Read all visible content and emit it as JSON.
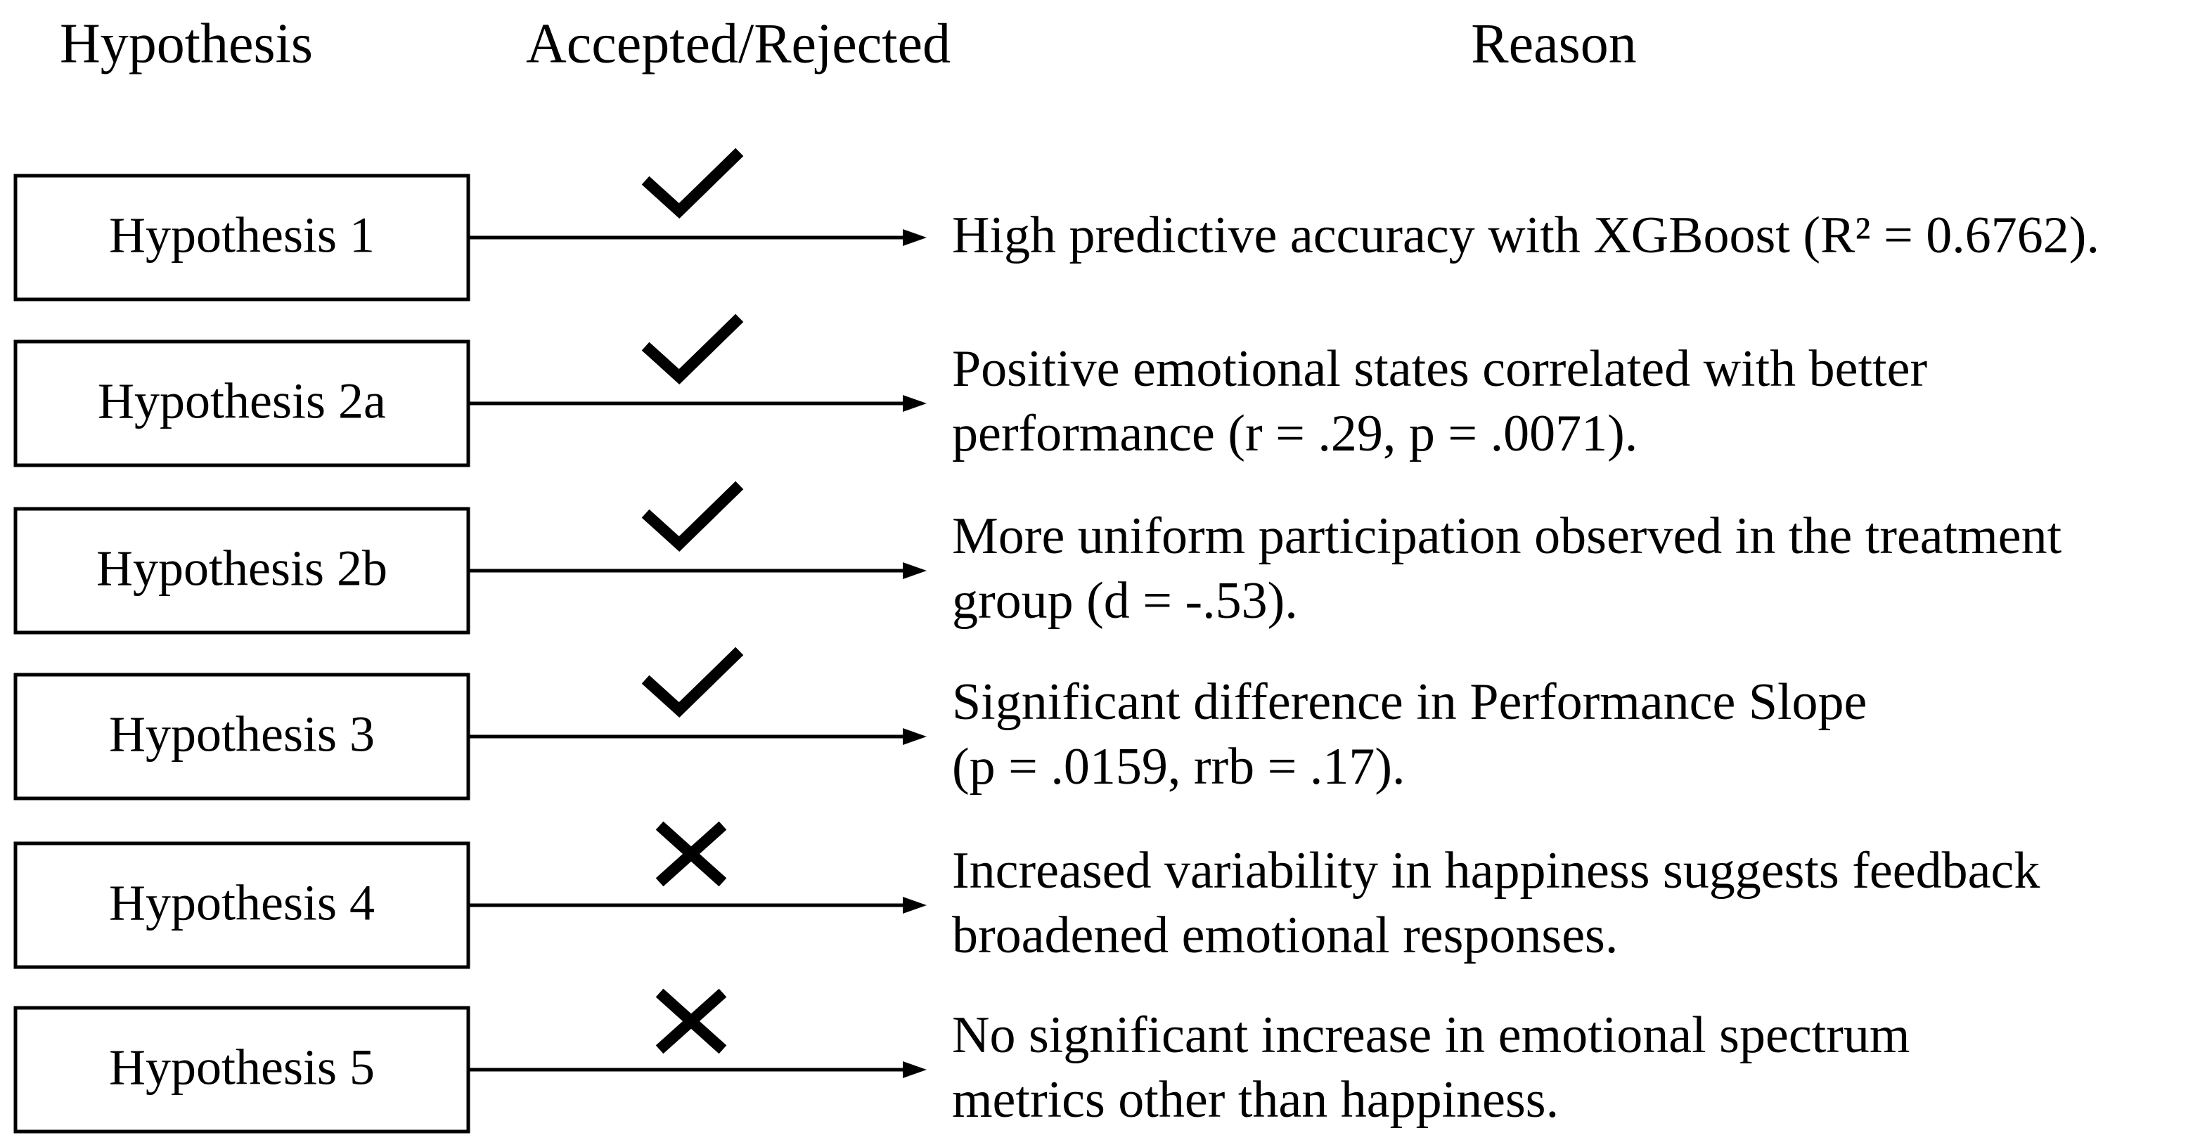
{
  "header": {
    "hypothesis": "Hypothesis",
    "status": "Accepted/Rejected",
    "reason": "Reason"
  },
  "rows": [
    {
      "label": "Hypothesis 1",
      "reason": [
        "High predictive accuracy with XGBoost (R² = 0.6762)."
      ]
    },
    {
      "label": "Hypothesis 2a",
      "reason": [
        "Positive emotional states correlated with better",
        "performance (r = .29, p = .0071)."
      ]
    },
    {
      "label": "Hypothesis 2b",
      "reason": [
        "More uniform participation observed in the treatment",
        "group (d = -.53)."
      ]
    },
    {
      "label": "Hypothesis 3",
      "reason": [
        "Significant difference in Performance Slope",
        "(p = .0159, rrb = .17)."
      ]
    },
    {
      "label": "Hypothesis 4",
      "reason": [
        "Increased variability in happiness suggests feedback",
        "broadened emotional responses."
      ]
    },
    {
      "label": "Hypothesis 5",
      "reason": [
        "No significant increase in emotional spectrum",
        "metrics other than happiness."
      ]
    }
  ]
}
